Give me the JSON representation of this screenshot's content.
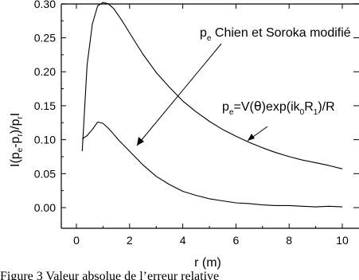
{
  "chart_data": {
    "type": "line",
    "xlabel": "r (m)",
    "ylabel": "I(p_e - p_r)/p_r I",
    "xlim": [
      -1,
      10.5
    ],
    "ylim": [
      -0.025,
      0.325
    ],
    "x_ticks": [
      "0",
      "2",
      "4",
      "6",
      "8",
      "10"
    ],
    "y_ticks": [
      "0.00",
      "0.05",
      "0.10",
      "0.15",
      "0.20",
      "0.25",
      "0.30"
    ],
    "grid": false,
    "series": [
      {
        "name": "p_e Chien et Soroka modifié",
        "x": [
          0.22,
          0.4,
          0.6,
          0.8,
          1.0,
          1.2,
          1.4,
          1.6,
          1.8,
          2.0,
          2.5,
          3.0,
          3.5,
          4.0,
          4.5,
          5.0,
          5.5,
          6.0,
          6.5,
          7.0,
          7.5,
          8.0,
          8.5,
          9.0,
          9.5,
          10.0
        ],
        "values": [
          0.083,
          0.21,
          0.27,
          0.297,
          0.302,
          0.3,
          0.293,
          0.282,
          0.27,
          0.257,
          0.226,
          0.199,
          0.177,
          0.157,
          0.141,
          0.127,
          0.115,
          0.105,
          0.096,
          0.088,
          0.081,
          0.075,
          0.07,
          0.066,
          0.062,
          0.057
        ]
      },
      {
        "name": "p_e=V(θ)exp(ik_0R_1)/R",
        "x": [
          0.22,
          0.4,
          0.6,
          0.8,
          1.0,
          1.2,
          1.4,
          1.6,
          1.8,
          2.0,
          2.5,
          3.0,
          3.5,
          4.0,
          4.5,
          5.0,
          5.5,
          6.0,
          6.5,
          7.0,
          7.5,
          8.0,
          8.5,
          9.0,
          9.5,
          10.0
        ],
        "values": [
          0.101,
          0.106,
          0.115,
          0.126,
          0.124,
          0.117,
          0.108,
          0.099,
          0.091,
          0.083,
          0.063,
          0.046,
          0.034,
          0.024,
          0.018,
          0.013,
          0.01,
          0.007,
          0.006,
          0.004,
          0.003,
          0.003,
          0.002,
          0.001,
          0.002,
          0.001
        ]
      }
    ],
    "annotations": [
      {
        "text": "p_e Chien et Soroka modifié",
        "series": 0
      },
      {
        "text": "p_e=V(θ)exp(ik_0R_1)/R",
        "series": 1
      }
    ]
  },
  "labels": {
    "ylabel_a": "I(p",
    "ylabel_sub_e": "e",
    "ylabel_b": "-p",
    "ylabel_sub_r": "r",
    "ylabel_c": ")/p",
    "ylabel_sub_r2": "r",
    "ylabel_d": "I",
    "xlabel": "r (m)",
    "annot1_p": "p",
    "annot1_sub": "e",
    "annot1_rest": " Chien et Soroka modifié",
    "annot2_p": "p",
    "annot2_sub": "e",
    "annot2_a": "=V(",
    "annot2_theta": "θ",
    "annot2_b": ")exp(ik",
    "annot2_sub0": "0",
    "annot2_c": "R",
    "annot2_sub1": "1",
    "annot2_d": ")/R"
  },
  "caption": {
    "text": "Figure 3 Valeur absolue de l’erreur relative"
  }
}
